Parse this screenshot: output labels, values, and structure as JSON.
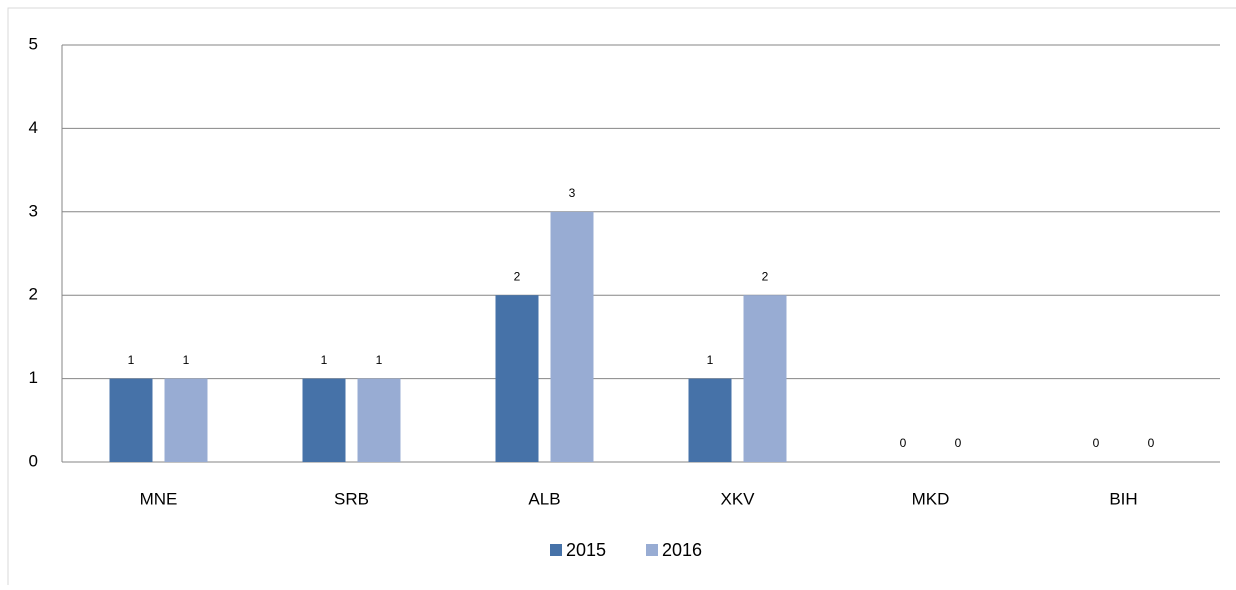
{
  "chart_data": {
    "type": "bar",
    "categories": [
      "MNE",
      "SRB",
      "ALB",
      "XKV",
      "MKD",
      "BIH"
    ],
    "series": [
      {
        "name": "2015",
        "color": "#4672a8",
        "values": [
          1,
          1,
          2,
          1,
          0,
          0
        ]
      },
      {
        "name": "2016",
        "color": "#98acd3",
        "values": [
          1,
          1,
          3,
          2,
          0,
          0
        ]
      }
    ],
    "ylim": [
      0,
      5
    ],
    "yticks": [
      0,
      1,
      2,
      3,
      4,
      5
    ],
    "grid": true,
    "legend": "bottom"
  }
}
